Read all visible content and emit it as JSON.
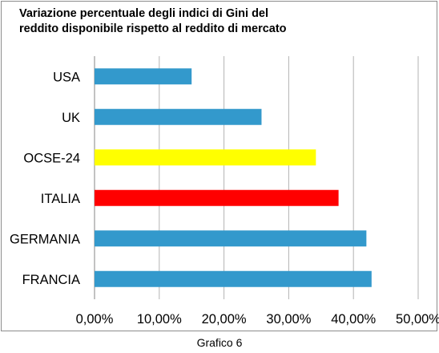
{
  "chart_data": {
    "type": "bar",
    "orientation": "horizontal",
    "title": "Variazione percentuale degli indici di Gini del reddito disponibile rispetto al reddito di mercato",
    "categories": [
      "USA",
      "UK",
      "OCSE-24",
      "ITALIA",
      "GERMANIA",
      "FRANCIA"
    ],
    "values": [
      15.0,
      25.8,
      34.2,
      37.7,
      42.0,
      42.8
    ],
    "bar_colors": [
      "#3399cc",
      "#3399cc",
      "#ffff00",
      "#ff0000",
      "#3399cc",
      "#3399cc"
    ],
    "xlim": [
      0,
      50
    ],
    "xticks": [
      "0,00%",
      "10,00%",
      "20,00%",
      "30,00%",
      "40,00%",
      "50,00%"
    ],
    "grid": "vertical",
    "legend": "none"
  },
  "caption": "Grafico 6"
}
